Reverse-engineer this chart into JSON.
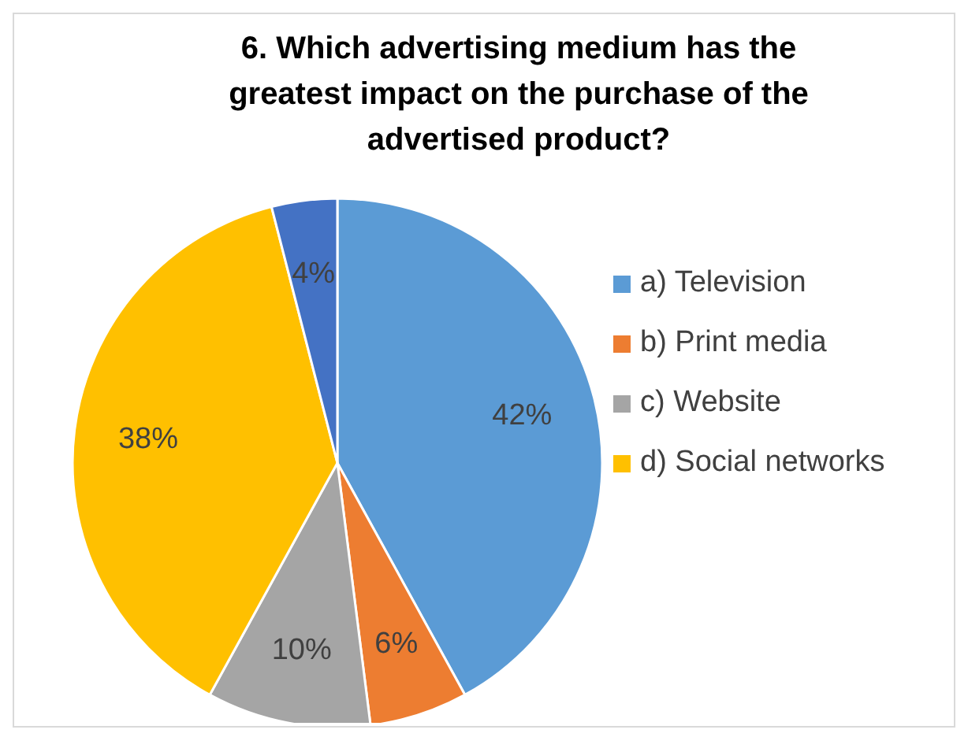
{
  "chart_data": {
    "type": "pie",
    "title": "6. Which advertising medium has the greatest impact on the purchase of the advertised product?",
    "categories": [
      "a) Television",
      "b) Print media",
      "c) Website",
      "d) Social networks",
      null
    ],
    "values": [
      42,
      6,
      10,
      38,
      4
    ],
    "colors": [
      "#5b9bd5",
      "#ed7d31",
      "#a5a5a5",
      "#ffc000",
      "#4472c4"
    ],
    "value_labels": [
      "42%",
      "6%",
      "10%",
      "38%",
      "4%"
    ],
    "legend": "right"
  }
}
